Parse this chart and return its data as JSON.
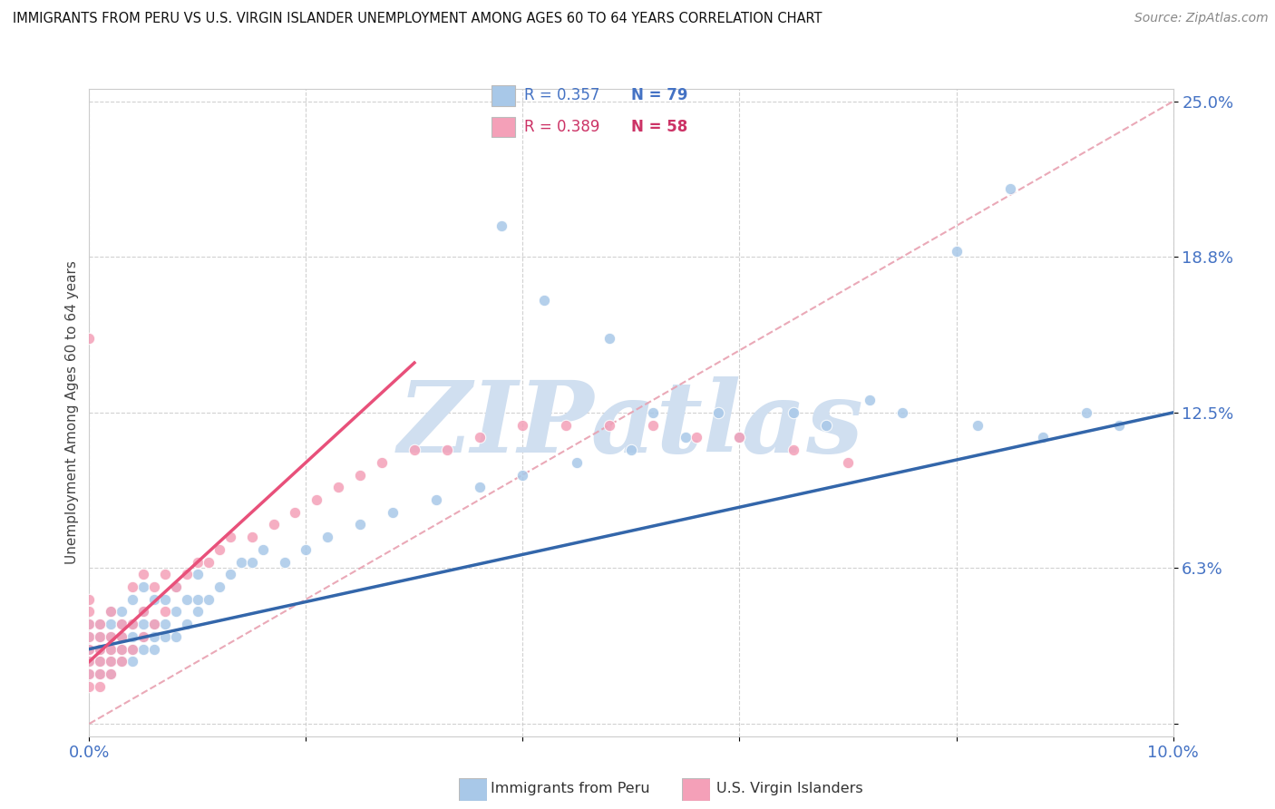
{
  "title": "IMMIGRANTS FROM PERU VS U.S. VIRGIN ISLANDER UNEMPLOYMENT AMONG AGES 60 TO 64 YEARS CORRELATION CHART",
  "source": "Source: ZipAtlas.com",
  "ylabel": "Unemployment Among Ages 60 to 64 years",
  "xlim": [
    0.0,
    0.1
  ],
  "ylim": [
    -0.005,
    0.255
  ],
  "xticks": [
    0.0,
    0.02,
    0.04,
    0.06,
    0.08,
    0.1
  ],
  "xticklabels": [
    "0.0%",
    "",
    "",
    "",
    "",
    "10.0%"
  ],
  "ytick_values": [
    0.0,
    0.0625,
    0.125,
    0.1875,
    0.25
  ],
  "ytick_labels": [
    "",
    "6.3%",
    "12.5%",
    "18.8%",
    "25.0%"
  ],
  "legend_r1": "R = 0.357",
  "legend_n1": "N = 79",
  "legend_r2": "R = 0.389",
  "legend_n2": "N = 58",
  "color_blue": "#a8c8e8",
  "color_pink": "#f4a0b8",
  "color_blue_line": "#3366aa",
  "color_pink_line": "#e8507a",
  "color_diag": "#e8a0b0",
  "watermark": "ZIPatlas",
  "watermark_color": "#d0dff0",
  "series1_label": "Immigrants from Peru",
  "series2_label": "U.S. Virgin Islanders",
  "blue_scatter_x": [
    0.0,
    0.0,
    0.0,
    0.0,
    0.0,
    0.001,
    0.001,
    0.001,
    0.001,
    0.001,
    0.002,
    0.002,
    0.002,
    0.002,
    0.002,
    0.002,
    0.003,
    0.003,
    0.003,
    0.003,
    0.003,
    0.004,
    0.004,
    0.004,
    0.004,
    0.004,
    0.005,
    0.005,
    0.005,
    0.005,
    0.005,
    0.006,
    0.006,
    0.006,
    0.006,
    0.007,
    0.007,
    0.007,
    0.008,
    0.008,
    0.008,
    0.009,
    0.009,
    0.01,
    0.01,
    0.01,
    0.011,
    0.012,
    0.013,
    0.014,
    0.015,
    0.016,
    0.018,
    0.02,
    0.022,
    0.025,
    0.028,
    0.032,
    0.036,
    0.04,
    0.045,
    0.05,
    0.055,
    0.06,
    0.068,
    0.075,
    0.082,
    0.088,
    0.092,
    0.095,
    0.038,
    0.042,
    0.048,
    0.052,
    0.058,
    0.065,
    0.072,
    0.08,
    0.085
  ],
  "blue_scatter_y": [
    0.02,
    0.025,
    0.03,
    0.035,
    0.04,
    0.02,
    0.025,
    0.03,
    0.035,
    0.04,
    0.02,
    0.025,
    0.03,
    0.035,
    0.04,
    0.045,
    0.025,
    0.03,
    0.035,
    0.04,
    0.045,
    0.025,
    0.03,
    0.035,
    0.04,
    0.05,
    0.03,
    0.035,
    0.04,
    0.045,
    0.055,
    0.03,
    0.035,
    0.04,
    0.05,
    0.035,
    0.04,
    0.05,
    0.035,
    0.045,
    0.055,
    0.04,
    0.05,
    0.045,
    0.05,
    0.06,
    0.05,
    0.055,
    0.06,
    0.065,
    0.065,
    0.07,
    0.065,
    0.07,
    0.075,
    0.08,
    0.085,
    0.09,
    0.095,
    0.1,
    0.105,
    0.11,
    0.115,
    0.115,
    0.12,
    0.125,
    0.12,
    0.115,
    0.125,
    0.12,
    0.2,
    0.17,
    0.155,
    0.125,
    0.125,
    0.125,
    0.13,
    0.19,
    0.215
  ],
  "pink_scatter_x": [
    0.0,
    0.0,
    0.0,
    0.0,
    0.0,
    0.0,
    0.0,
    0.0,
    0.001,
    0.001,
    0.001,
    0.001,
    0.001,
    0.001,
    0.002,
    0.002,
    0.002,
    0.002,
    0.002,
    0.003,
    0.003,
    0.003,
    0.003,
    0.004,
    0.004,
    0.004,
    0.005,
    0.005,
    0.005,
    0.006,
    0.006,
    0.007,
    0.007,
    0.008,
    0.009,
    0.01,
    0.011,
    0.012,
    0.013,
    0.015,
    0.017,
    0.019,
    0.021,
    0.023,
    0.025,
    0.027,
    0.03,
    0.033,
    0.036,
    0.04,
    0.044,
    0.048,
    0.052,
    0.056,
    0.06,
    0.065,
    0.07,
    0.0
  ],
  "pink_scatter_y": [
    0.015,
    0.02,
    0.025,
    0.03,
    0.035,
    0.04,
    0.045,
    0.05,
    0.015,
    0.02,
    0.025,
    0.03,
    0.035,
    0.04,
    0.02,
    0.025,
    0.03,
    0.035,
    0.045,
    0.025,
    0.03,
    0.035,
    0.04,
    0.03,
    0.04,
    0.055,
    0.035,
    0.045,
    0.06,
    0.04,
    0.055,
    0.045,
    0.06,
    0.055,
    0.06,
    0.065,
    0.065,
    0.07,
    0.075,
    0.075,
    0.08,
    0.085,
    0.09,
    0.095,
    0.1,
    0.105,
    0.11,
    0.11,
    0.115,
    0.12,
    0.12,
    0.12,
    0.12,
    0.115,
    0.115,
    0.11,
    0.105,
    0.155
  ],
  "blue_trend_x": [
    0.0,
    0.1
  ],
  "blue_trend_y": [
    0.03,
    0.125
  ],
  "pink_trend_x": [
    0.0,
    0.03
  ],
  "pink_trend_y": [
    0.025,
    0.145
  ],
  "diag_trend_x": [
    0.0,
    0.1
  ],
  "diag_trend_y": [
    0.0,
    0.25
  ]
}
